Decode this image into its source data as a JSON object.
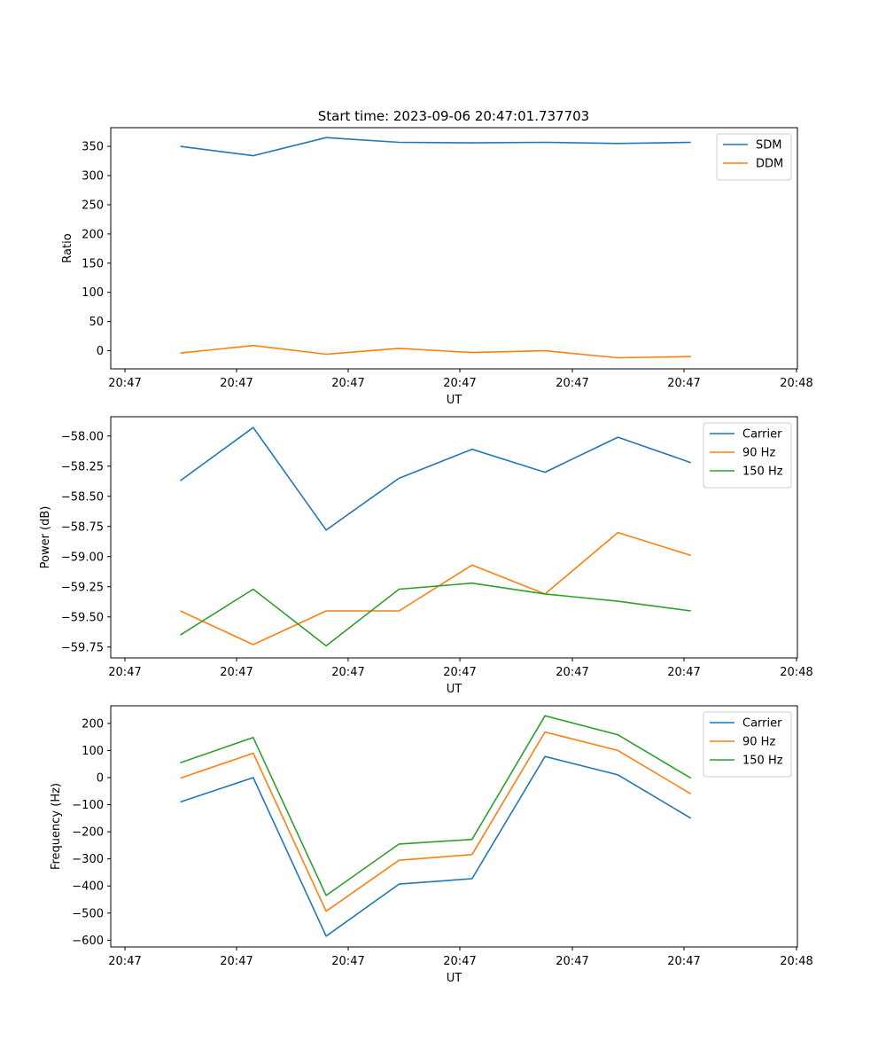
{
  "figure": {
    "title": "Start time: 2023-09-06 20:47:01.737703"
  },
  "chart_data": [
    {
      "type": "line",
      "title": "Start time: 2023-09-06 20:47:01.737703",
      "xlabel": "UT",
      "ylabel": "Ratio",
      "x_tick_labels": [
        "20:47",
        "20:47",
        "20:47",
        "20:47",
        "20:47",
        "20:47",
        "20:48"
      ],
      "y_ticks": [
        0,
        50,
        100,
        150,
        200,
        250,
        300,
        350
      ],
      "y_tick_labels": [
        "0",
        "50",
        "100",
        "150",
        "200",
        "250",
        "300",
        "350"
      ],
      "ylim": [
        -31,
        382
      ],
      "x": [
        0.5,
        1.15,
        1.8,
        2.45,
        3.1,
        3.75,
        4.4,
        5.05
      ],
      "xlim": [
        -0.12,
        6.0
      ],
      "legend": "top-right",
      "series": [
        {
          "name": "SDM",
          "color": "#1f77b4",
          "values": [
            350,
            334,
            365,
            357,
            356,
            357,
            355,
            357
          ]
        },
        {
          "name": "DDM",
          "color": "#ff7f0e",
          "values": [
            -4,
            9,
            -6,
            4,
            -3,
            0,
            -12,
            -10
          ]
        }
      ]
    },
    {
      "type": "line",
      "title": "",
      "xlabel": "UT",
      "ylabel": "Power (dB)",
      "x_tick_labels": [
        "20:47",
        "20:47",
        "20:47",
        "20:47",
        "20:47",
        "20:47",
        "20:48"
      ],
      "y_ticks": [
        -59.75,
        -59.5,
        -59.25,
        -59.0,
        -58.75,
        -58.5,
        -58.25,
        -58.0
      ],
      "y_tick_labels": [
        "−59.75",
        "−59.50",
        "−59.25",
        "−59.00",
        "−58.75",
        "−58.50",
        "−58.25",
        "−58.00"
      ],
      "ylim": [
        -59.84,
        -57.84
      ],
      "x": [
        0.5,
        1.15,
        1.8,
        2.45,
        3.1,
        3.75,
        4.4,
        5.05
      ],
      "xlim": [
        -0.12,
        6.0
      ],
      "legend": "top-right",
      "series": [
        {
          "name": "Carrier",
          "color": "#1f77b4",
          "values": [
            -58.37,
            -57.93,
            -58.78,
            -58.35,
            -58.11,
            -58.3,
            -58.01,
            -58.22
          ]
        },
        {
          "name": "90 Hz",
          "color": "#ff7f0e",
          "values": [
            -59.45,
            -59.73,
            -59.45,
            -59.45,
            -59.07,
            -59.31,
            -58.8,
            -58.99
          ]
        },
        {
          "name": "150 Hz",
          "color": "#2ca02c",
          "values": [
            -59.65,
            -59.27,
            -59.74,
            -59.27,
            -59.22,
            -59.31,
            -59.37,
            -59.45
          ]
        }
      ]
    },
    {
      "type": "line",
      "title": "",
      "xlabel": "UT",
      "ylabel": "Frequency (Hz)",
      "x_tick_labels": [
        "20:47",
        "20:47",
        "20:47",
        "20:47",
        "20:47",
        "20:47",
        "20:48"
      ],
      "y_ticks": [
        -600,
        -500,
        -400,
        -300,
        -200,
        -100,
        0,
        100,
        200
      ],
      "y_tick_labels": [
        "−600",
        "−500",
        "−400",
        "−300",
        "−200",
        "−100",
        "0",
        "100",
        "200"
      ],
      "ylim": [
        -625,
        265
      ],
      "x": [
        0.5,
        1.15,
        1.8,
        2.45,
        3.1,
        3.75,
        4.4,
        5.05
      ],
      "xlim": [
        -0.12,
        6.0
      ],
      "legend": "top-right",
      "series": [
        {
          "name": "Carrier",
          "color": "#1f77b4",
          "values": [
            -90,
            0,
            -585,
            -393,
            -373,
            78,
            10,
            -150
          ]
        },
        {
          "name": "90 Hz",
          "color": "#ff7f0e",
          "values": [
            -2,
            90,
            -493,
            -305,
            -284,
            168,
            100,
            -60
          ]
        },
        {
          "name": "150 Hz",
          "color": "#2ca02c",
          "values": [
            55,
            148,
            -435,
            -245,
            -228,
            228,
            158,
            -2
          ]
        }
      ]
    }
  ]
}
